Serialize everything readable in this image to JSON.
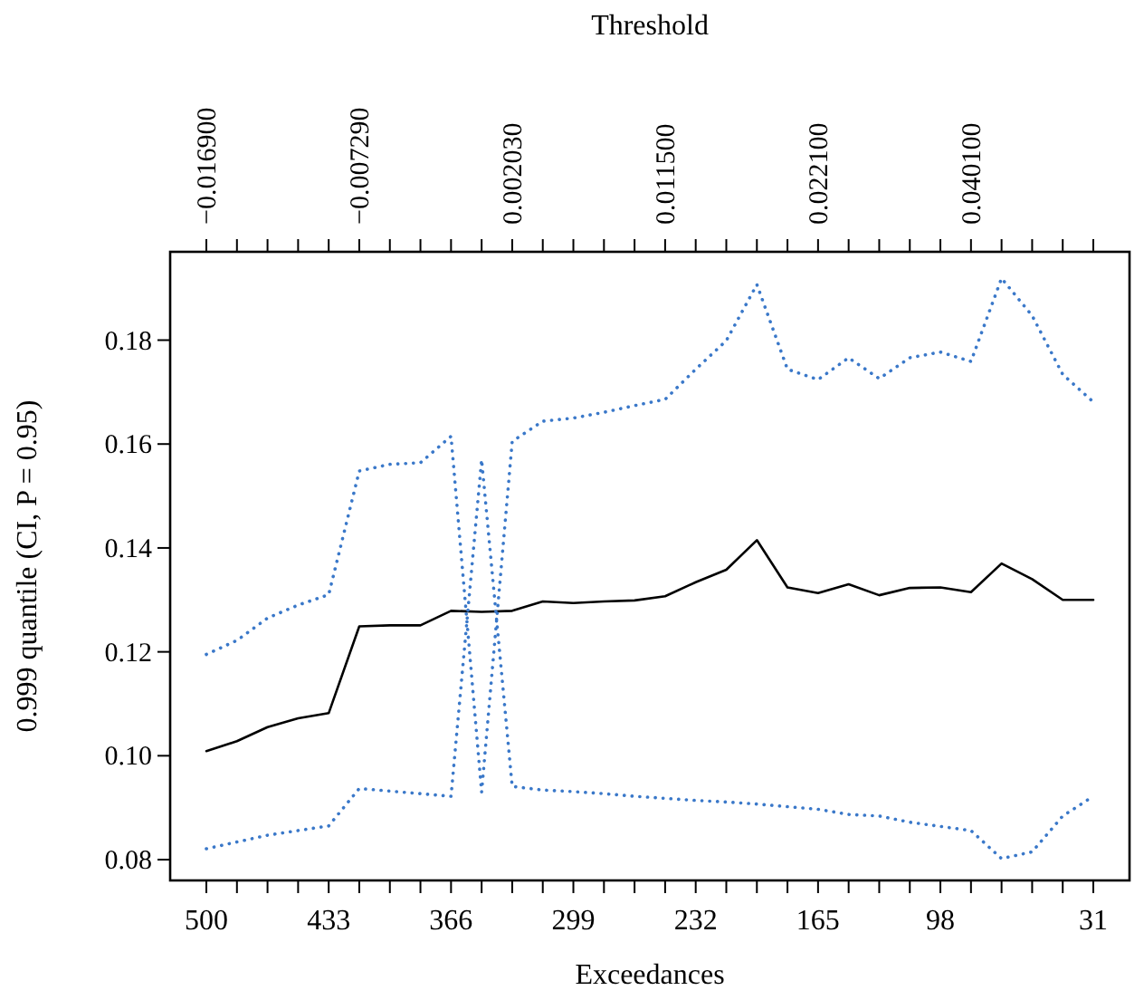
{
  "chart_data": {
    "type": "line",
    "xlabel": "Exceedances",
    "ylabel": "0.999 quantile (CI, P = 0.95)",
    "x2label": "Threshold",
    "categories": [
      "500",
      null,
      null,
      null,
      "433",
      null,
      null,
      null,
      "366",
      null,
      null,
      null,
      "299",
      null,
      null,
      null,
      "232",
      null,
      null,
      null,
      "165",
      null,
      null,
      null,
      "98",
      null,
      null,
      null,
      null,
      "31"
    ],
    "ylim": [
      0.076,
      0.197
    ],
    "yticks": [
      0.08,
      {
        "value": 0.1,
        "label": "0.10"
      },
      0.12,
      0.14,
      0.16,
      0.18
    ],
    "annotations": [
      "−0.016900",
      "−0.007290",
      "0.002030",
      "0.011500",
      "0.022100",
      "0.040100"
    ],
    "series": [
      {
        "color": "#000000",
        "line_style": "solid",
        "values": [
          0.1009,
          0.1028,
          0.1055,
          0.1072,
          0.1082,
          0.1249,
          0.1251,
          0.1251,
          0.1279,
          0.1277,
          0.1279,
          0.1297,
          0.1294,
          0.1297,
          0.1299,
          0.1307,
          0.1334,
          0.1358,
          0.1415,
          0.1324,
          0.1313,
          0.133,
          0.1309,
          0.1323,
          0.1324,
          0.1315,
          0.137,
          0.134,
          0.13,
          0.13
        ]
      },
      {
        "color": "#3a78c9",
        "line_style": "dotted",
        "values": [
          0.1195,
          0.1222,
          0.1265,
          0.129,
          0.131,
          0.1548,
          0.1561,
          0.1564,
          0.1615,
          0.093,
          0.1605,
          0.1644,
          0.165,
          0.1661,
          0.1674,
          0.1686,
          0.1744,
          0.1799,
          0.1907,
          0.1744,
          0.1724,
          0.1766,
          0.1726,
          0.1766,
          0.1777,
          0.1759,
          0.1919,
          0.1847,
          0.1734,
          0.1681
        ]
      },
      {
        "color": "#3a78c9",
        "line_style": "dotted",
        "values": [
          0.0821,
          0.0834,
          0.0847,
          0.0856,
          0.0865,
          0.0937,
          0.0932,
          0.0927,
          0.0922,
          0.157,
          0.0941,
          0.0934,
          0.0931,
          0.0927,
          0.0922,
          0.0918,
          0.0914,
          0.0911,
          0.0907,
          0.0902,
          0.0897,
          0.0887,
          0.0884,
          0.0872,
          0.0864,
          0.0856,
          0.0802,
          0.0815,
          0.0884,
          0.0922
        ]
      }
    ]
  }
}
